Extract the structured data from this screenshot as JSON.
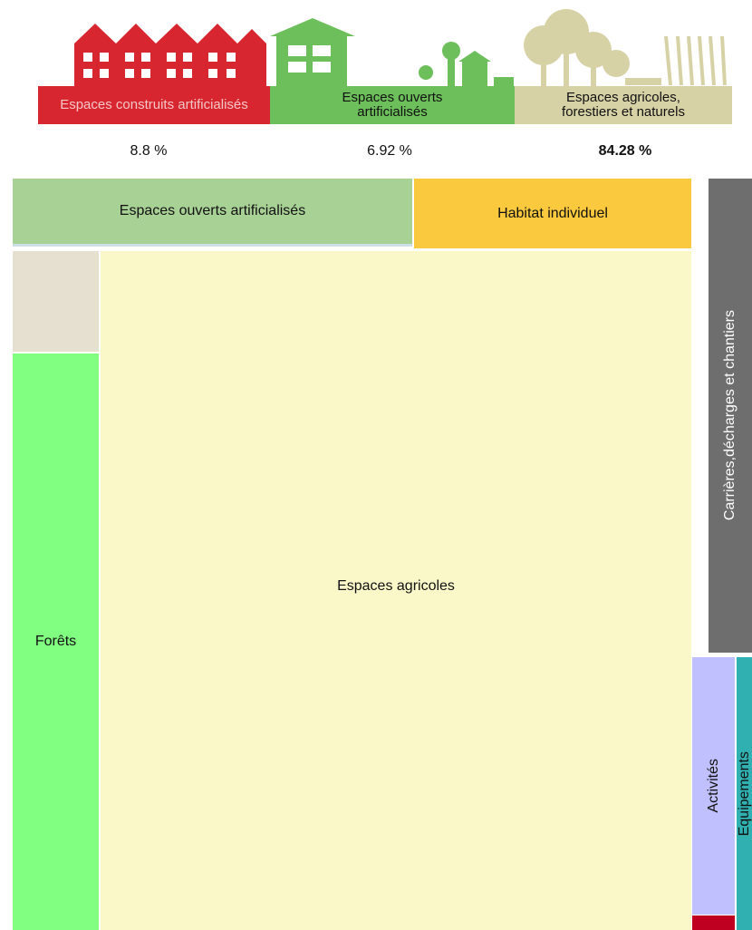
{
  "header": {
    "categories": [
      {
        "label": "Espaces construits artificialisés",
        "share": "8.8 %"
      },
      {
        "label": "Espaces ouverts artificialisés",
        "share": "6.92 %"
      },
      {
        "label": "Espaces agricoles, forestiers et naturels",
        "share": "84.28 %"
      }
    ]
  },
  "treemap": {
    "tiles": [
      {
        "label": "Espaces ouverts artificialisés"
      },
      {
        "label": "Habitat individuel"
      },
      {
        "label": "Carrières,décharges et chantiers"
      },
      {
        "label": "Forêts"
      },
      {
        "label": "Espaces agricoles"
      },
      {
        "label": "Activités"
      },
      {
        "label": "Equipements"
      }
    ]
  }
}
